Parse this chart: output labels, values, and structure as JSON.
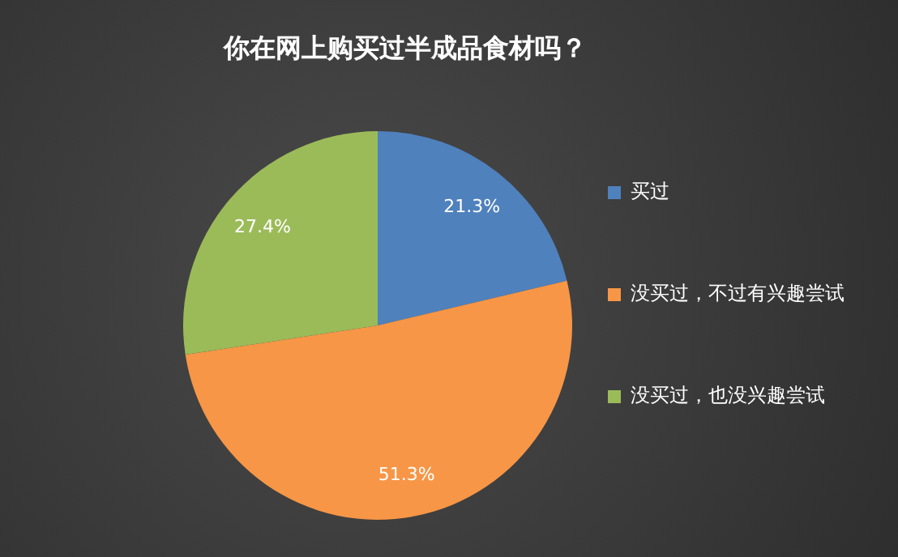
{
  "chart_data": {
    "type": "pie",
    "title": "你在网上购买过半成品食材吗？",
    "categories": [
      "买过",
      "没买过，不过有兴趣尝试",
      "没买过，也没兴趣尝试"
    ],
    "values": [
      21.3,
      51.3,
      27.4
    ],
    "colors": [
      "#4f81bd",
      "#f79646",
      "#9bbb59"
    ],
    "value_labels": [
      "21.3%",
      "51.3%",
      "27.4%"
    ],
    "legend": "right"
  }
}
